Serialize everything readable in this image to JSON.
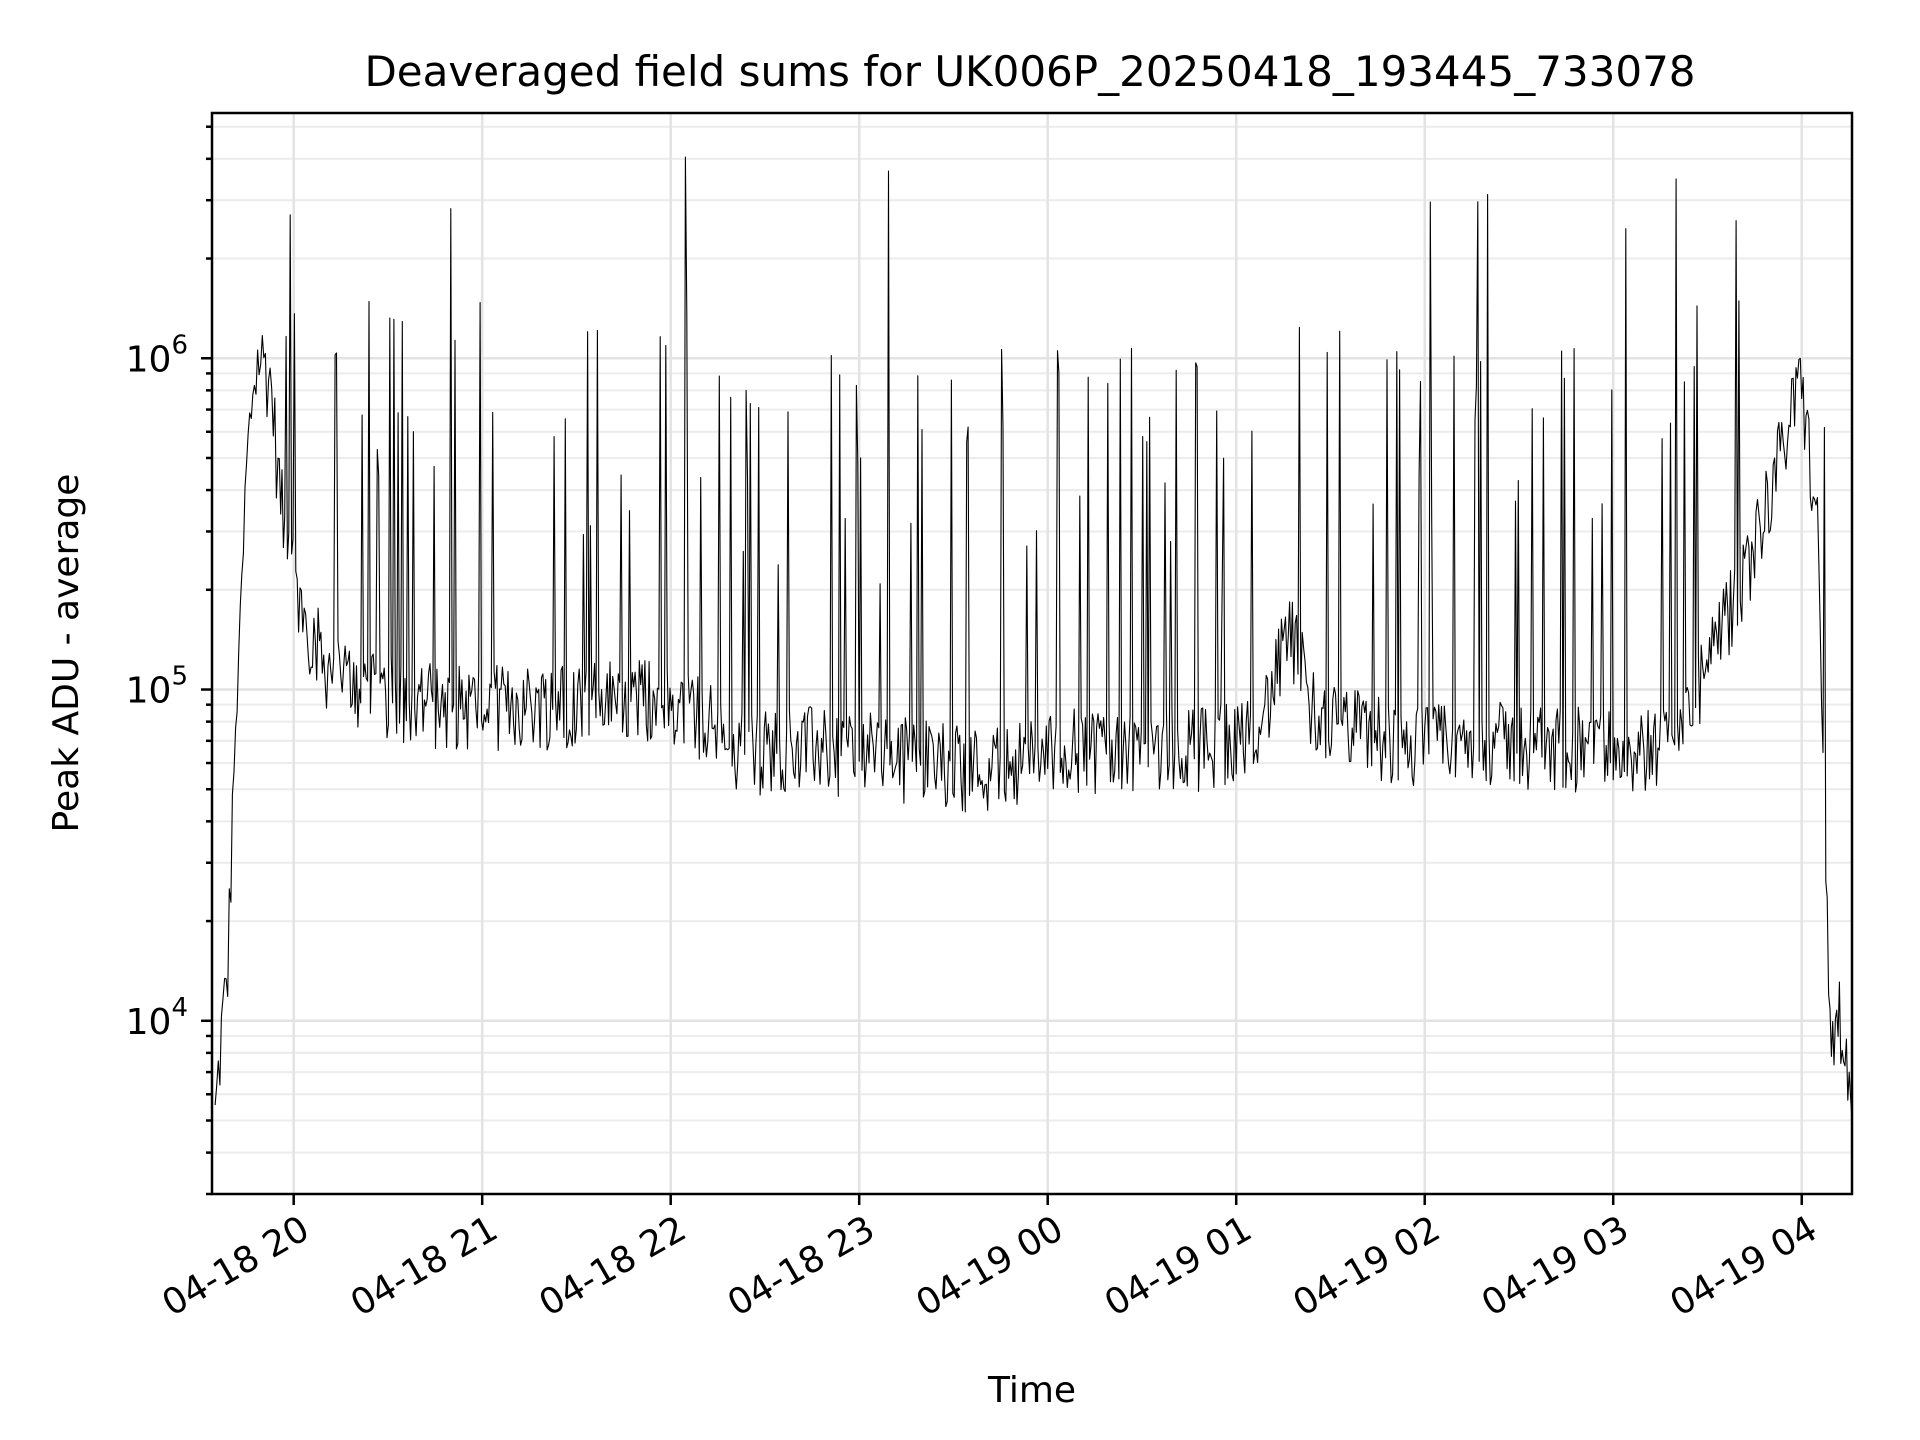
{
  "chart_data": {
    "type": "line",
    "title": "Deaveraged field sums for UK006P_20250418_193445_733078",
    "xlabel": "Time",
    "ylabel": "Peak ADU - average",
    "yscale": "log",
    "grid": true,
    "line_color": "#000000",
    "xlim": [
      "2025-04-18 19:34",
      "2025-04-19 04:16"
    ],
    "ylim": [
      3000,
      5500000
    ],
    "x_ticks": [
      {
        "value": "2025-04-18 20:00",
        "label": "04-18 20"
      },
      {
        "value": "2025-04-18 21:00",
        "label": "04-18 21"
      },
      {
        "value": "2025-04-18 22:00",
        "label": "04-18 22"
      },
      {
        "value": "2025-04-18 23:00",
        "label": "04-18 23"
      },
      {
        "value": "2025-04-19 00:00",
        "label": "04-19 00"
      },
      {
        "value": "2025-04-19 01:00",
        "label": "04-19 01"
      },
      {
        "value": "2025-04-19 02:00",
        "label": "04-19 02"
      },
      {
        "value": "2025-04-19 03:00",
        "label": "04-19 03"
      },
      {
        "value": "2025-04-19 04:00",
        "label": "04-19 04"
      }
    ],
    "y_ticks": [
      {
        "value": 10000,
        "base": "10",
        "exp": "4"
      },
      {
        "value": 100000,
        "base": "10",
        "exp": "5"
      },
      {
        "value": 1000000,
        "base": "10",
        "exp": "6"
      }
    ],
    "series": [
      {
        "points": [
          [
            "2025-04-18 19:35",
            5000
          ],
          [
            "2025-04-18 19:37",
            9000
          ],
          [
            "2025-04-18 19:39",
            14000
          ],
          [
            "2025-04-18 19:41",
            60000
          ],
          [
            "2025-04-18 19:43",
            180000
          ],
          [
            "2025-04-18 19:45",
            450000
          ],
          [
            "2025-04-18 19:47",
            800000
          ],
          [
            "2025-04-18 19:49",
            1000000
          ],
          [
            "2025-04-18 19:51",
            950000
          ],
          [
            "2025-04-18 19:53",
            800000
          ],
          [
            "2025-04-18 19:55",
            450000
          ],
          [
            "2025-04-18 19:58",
            250000
          ],
          [
            "2025-04-18 20:02",
            180000
          ],
          [
            "2025-04-18 20:10",
            120000
          ],
          [
            "2025-04-18 20:20",
            100000
          ],
          [
            "2025-04-18 20:35",
            95000
          ],
          [
            "2025-04-18 20:50",
            90000
          ],
          [
            "2025-04-18 21:10",
            90000
          ],
          [
            "2025-04-18 21:30",
            92000
          ],
          [
            "2025-04-18 21:50",
            95000
          ],
          [
            "2025-04-18 22:10",
            85000
          ],
          [
            "2025-04-18 22:20",
            65000
          ],
          [
            "2025-04-18 22:40",
            68000
          ],
          [
            "2025-04-18 23:00",
            65000
          ],
          [
            "2025-04-18 23:20",
            62000
          ],
          [
            "2025-04-18 23:40",
            58000
          ],
          [
            "2025-04-19 00:00",
            65000
          ],
          [
            "2025-04-19 00:20",
            68000
          ],
          [
            "2025-04-19 00:40",
            66000
          ],
          [
            "2025-04-19 01:00",
            70000
          ],
          [
            "2025-04-19 01:10",
            90000
          ],
          [
            "2025-04-19 01:17",
            150000
          ],
          [
            "2025-04-19 01:25",
            85000
          ],
          [
            "2025-04-19 01:40",
            75000
          ],
          [
            "2025-04-19 02:00",
            68000
          ],
          [
            "2025-04-19 02:20",
            70000
          ],
          [
            "2025-04-19 02:40",
            68000
          ],
          [
            "2025-04-19 03:00",
            66000
          ],
          [
            "2025-04-19 03:20",
            68000
          ],
          [
            "2025-04-19 03:40",
            200000
          ],
          [
            "2025-04-19 03:50",
            400000
          ],
          [
            "2025-04-19 04:00",
            850000
          ],
          [
            "2025-04-19 04:05",
            300000
          ],
          [
            "2025-04-19 04:09",
            9000
          ],
          [
            "2025-04-19 04:12",
            11000
          ],
          [
            "2025-04-19 04:16",
            5000
          ]
        ]
      }
    ]
  }
}
